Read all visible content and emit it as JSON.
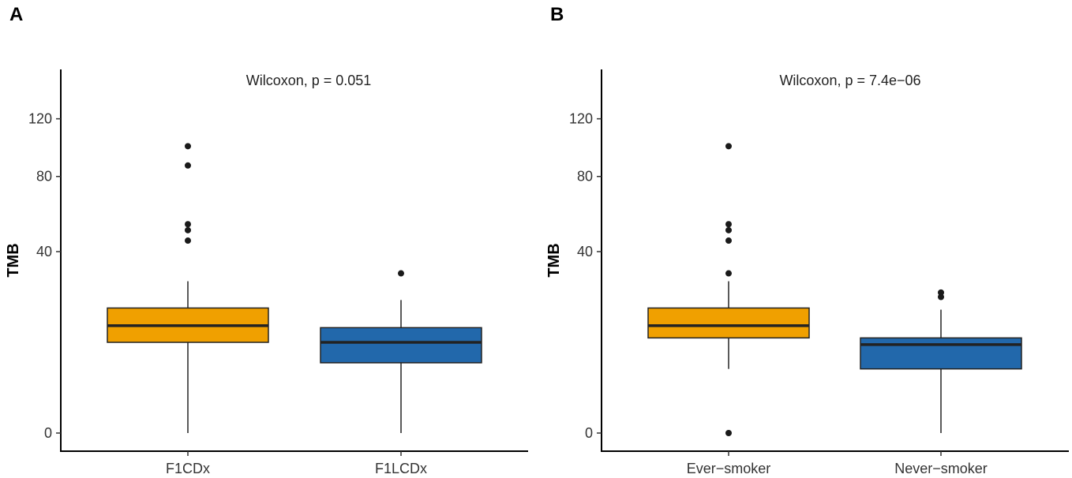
{
  "colors": {
    "orange": "#f0a000",
    "blue": "#2268ab",
    "line": "#222222"
  },
  "chart_data": [
    {
      "panel": "A",
      "type": "box",
      "annotation": "Wilcoxon, p = 0.051",
      "ylabel": "TMB",
      "xlabel": "",
      "yscale": "sqrt",
      "ylim": [
        0,
        150
      ],
      "yticks": [
        0,
        40,
        80,
        120
      ],
      "categories": [
        "F1CDx",
        "F1LCDx"
      ],
      "series": [
        {
          "name": "F1CDx",
          "color": "orange",
          "whisker_low": 0,
          "q1": 10,
          "median": 14,
          "q3": 19,
          "whisker_high": 28,
          "outliers": [
            45,
            50,
            53,
            87,
            100
          ]
        },
        {
          "name": "F1LCDx",
          "color": "blue",
          "whisker_low": 0,
          "q1": 6,
          "median": 10,
          "q3": 13.5,
          "whisker_high": 21.5,
          "outliers": [
            31
          ]
        }
      ]
    },
    {
      "panel": "B",
      "type": "box",
      "annotation": "Wilcoxon, p = 7.4e−06",
      "ylabel": "TMB",
      "xlabel": "",
      "yscale": "sqrt",
      "ylim": [
        0,
        150
      ],
      "yticks": [
        0,
        40,
        80,
        120
      ],
      "categories": [
        "Ever−smoker",
        "Never−smoker"
      ],
      "series": [
        {
          "name": "Ever−smoker",
          "color": "orange",
          "whisker_low": 5,
          "q1": 11,
          "median": 14,
          "q3": 19,
          "whisker_high": 28,
          "outliers": [
            0,
            31,
            45,
            50,
            53,
            100
          ]
        },
        {
          "name": "Never−smoker",
          "color": "blue",
          "whisker_low": 0,
          "q1": 5,
          "median": 9.5,
          "q3": 11,
          "whisker_high": 18.5,
          "outliers": [
            22.5,
            24
          ]
        }
      ]
    }
  ]
}
